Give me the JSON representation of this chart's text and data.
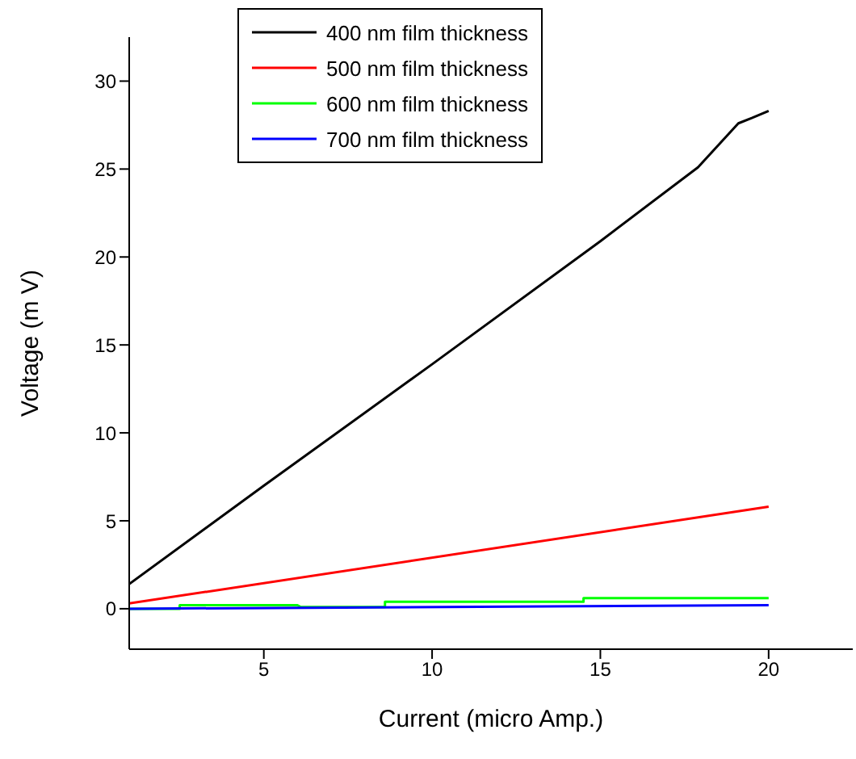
{
  "chart_data": {
    "type": "line",
    "xlabel": "Current (micro Amp.)",
    "ylabel": "Voltage (m V)",
    "xlim": [
      1,
      22.5
    ],
    "xticks": [
      5,
      10,
      15,
      20
    ],
    "ylim": [
      -2.3,
      32.5
    ],
    "yticks": [
      0,
      5,
      10,
      15,
      20,
      25,
      30
    ],
    "grid": false,
    "legend": "top",
    "marker": "none",
    "line_style": "solid",
    "series": [
      {
        "name": "400 nm film thickness",
        "color": "#000000",
        "x": [
          1,
          5,
          10,
          15,
          17.9,
          19.1,
          19.5,
          20
        ],
        "values": [
          1.4,
          7.0,
          13.9,
          20.9,
          25.1,
          27.6,
          27.9,
          28.3
        ]
      },
      {
        "name": "500 nm film thickness",
        "color": "#ff0000",
        "x": [
          1,
          20
        ],
        "values": [
          0.3,
          5.8
        ]
      },
      {
        "name": "600 nm film thickness",
        "color": "#00ff00",
        "x": [
          1,
          2.5,
          2.5,
          6,
          6.1,
          8.6,
          8.6,
          14.5,
          14.5,
          20
        ],
        "values": [
          0,
          0,
          0.2,
          0.2,
          0.1,
          0.1,
          0.4,
          0.4,
          0.6,
          0.6
        ]
      },
      {
        "name": "700 nm film thickness",
        "color": "#0000ff",
        "x": [
          1,
          20
        ],
        "values": [
          0,
          0.2
        ]
      }
    ]
  }
}
